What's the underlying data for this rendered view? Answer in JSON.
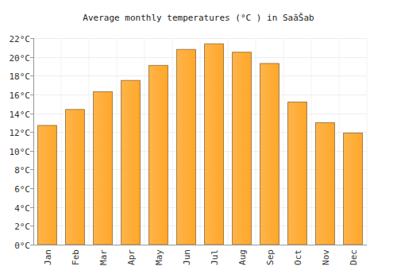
{
  "chart_data": {
    "type": "bar",
    "title": "Average monthly temperatures (°C ) in SaăŠab",
    "categories": [
      "Jan",
      "Feb",
      "Mar",
      "Apr",
      "May",
      "Jun",
      "Jul",
      "Aug",
      "Sep",
      "Oct",
      "Nov",
      "Dec"
    ],
    "values": [
      12.7,
      14.4,
      16.3,
      17.5,
      19.1,
      20.8,
      21.4,
      20.5,
      19.3,
      15.2,
      13.0,
      11.9
    ],
    "color": "#ffa72a",
    "ylim": [
      0,
      22
    ],
    "yticks": [
      {
        "value": 0,
        "label": "0°C"
      },
      {
        "value": 2,
        "label": "2°C"
      },
      {
        "value": 4,
        "label": "4°C"
      },
      {
        "value": 6,
        "label": "6°C"
      },
      {
        "value": 8,
        "label": "8°C"
      },
      {
        "value": 10,
        "label": "10°C"
      },
      {
        "value": 12,
        "label": "12°C"
      },
      {
        "value": 14,
        "label": "14°C"
      },
      {
        "value": 16,
        "label": "16°C"
      },
      {
        "value": 18,
        "label": "18°C"
      },
      {
        "value": 20,
        "label": "20°C"
      },
      {
        "value": 22,
        "label": "22°C"
      }
    ],
    "grid": true
  }
}
